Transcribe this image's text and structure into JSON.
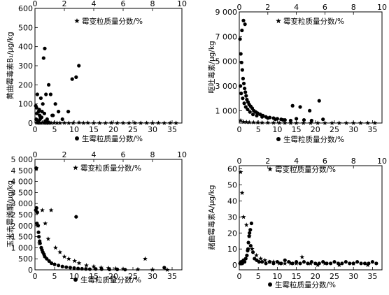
{
  "chart_data": [
    {
      "type": "scatter",
      "ylabel": "黄曲霉毒素B₁/μg/kg",
      "x_bottom": {
        "ticks": [
          "0",
          "5",
          "10",
          "15",
          "20",
          "25",
          "30",
          "35"
        ],
        "range": [
          0,
          37.5
        ]
      },
      "x_top": {
        "ticks": [
          "0",
          "2",
          "4",
          "6",
          "8",
          "10"
        ],
        "range": [
          0,
          10
        ]
      },
      "y": {
        "ticks": [
          "0",
          "100",
          "200",
          "300",
          "400",
          "500",
          "600"
        ],
        "range": [
          0,
          600
        ]
      },
      "series": [
        {
          "name": "生霉粒质量分数/%",
          "marker": "circle",
          "x": [
            0.2,
            0.4,
            0.6,
            0.9,
            1.2,
            1.5,
            1.8,
            2.2,
            2.5,
            2.8,
            3.1,
            3.5,
            4.0,
            4.6,
            5.2,
            6.0,
            7.0,
            8.5,
            9.5,
            10.5,
            11.2,
            0.3,
            0.8,
            1.4,
            2.0,
            3.0,
            4.4,
            0.5,
            1.1,
            1.7,
            2.4,
            0.7,
            1.3,
            2.6,
            3.3
          ],
          "y": [
            90,
            80,
            150,
            60,
            40,
            130,
            60,
            340,
            390,
            150,
            20,
            200,
            150,
            40,
            100,
            60,
            20,
            60,
            230,
            240,
            300,
            20,
            10,
            30,
            100,
            10,
            40,
            50,
            70,
            30,
            50,
            10,
            20,
            10,
            5
          ]
        },
        {
          "name": "霉变粒质量分数/%",
          "marker": "star",
          "x": [
            0.1,
            0.2,
            0.3,
            0.4,
            0.5,
            0.6,
            0.7,
            0.8,
            0.9,
            1.0,
            1.1,
            1.3,
            1.5,
            1.7,
            2.0,
            2.3,
            2.6,
            3.0,
            3.3,
            3.6,
            4.0,
            4.4,
            4.8,
            5.2,
            5.6,
            6.0,
            6.4,
            6.8,
            7.2,
            7.6,
            8.0,
            8.4,
            8.8,
            9.2,
            9.6
          ],
          "y": [
            2,
            0,
            1,
            0,
            3,
            0,
            1,
            0,
            0,
            2,
            0,
            1,
            0,
            0,
            1,
            0,
            0,
            2,
            0,
            1,
            0,
            0,
            0,
            1,
            0,
            0,
            0,
            0,
            0,
            0,
            0,
            0,
            0,
            0,
            0
          ]
        }
      ]
    },
    {
      "type": "scatter",
      "ylabel": "呕吐毒素/μg/kg",
      "x_bottom": {
        "ticks": [
          "0",
          "5",
          "10",
          "15",
          "20",
          "25",
          "30",
          "35"
        ],
        "range": [
          0,
          37.5
        ]
      },
      "x_top": {
        "ticks": [
          "0",
          "2",
          "4",
          "6",
          "8",
          "10"
        ],
        "range": [
          0,
          10
        ]
      },
      "y": {
        "ticks": [
          "1 000",
          "3 000",
          "5 000",
          "7 000",
          "9 000"
        ],
        "range": [
          0,
          9000
        ]
      },
      "series": [
        {
          "name": "生霉粒质量分数/%",
          "marker": "circle",
          "x": [
            0.2,
            0.4,
            0.6,
            0.8,
            1.0,
            1.2,
            1.4,
            1.6,
            1.8,
            2.0,
            2.3,
            2.6,
            3.0,
            3.4,
            3.8,
            4.3,
            4.8,
            5.5,
            6.2,
            7.0,
            8.0,
            9.0,
            10.0,
            11.0,
            12.0,
            13.5,
            15.0,
            17.0,
            19.0,
            21.0,
            22.0,
            0.3,
            0.5,
            0.9,
            1.3,
            1.7,
            2.2,
            2.8,
            3.6,
            4.6,
            6.0,
            7.5,
            9.5,
            11.5,
            14.0,
            16.0,
            18.5,
            0.7,
            1.1,
            1.5
          ],
          "y": [
            6800,
            5600,
            4900,
            4300,
            3600,
            3200,
            2800,
            2500,
            2200,
            1900,
            1700,
            1500,
            1350,
            1200,
            1000,
            900,
            800,
            700,
            600,
            500,
            450,
            400,
            350,
            300,
            250,
            200,
            350,
            250,
            200,
            1800,
            300,
            3000,
            2400,
            2000,
            1600,
            1300,
            1100,
            900,
            700,
            600,
            500,
            400,
            300,
            250,
            1400,
            1300,
            1000,
            7500,
            8300,
            8000
          ]
        },
        {
          "name": "霉变粒质量分数/%",
          "marker": "star",
          "x": [
            0.1,
            0.3,
            0.5,
            0.7,
            1.0,
            1.3,
            1.6,
            2.0,
            2.4,
            2.8,
            3.2,
            3.6,
            4.0,
            4.5,
            5.0,
            5.5,
            6.0,
            6.5,
            7.0,
            7.5,
            8.0,
            8.5,
            9.0,
            9.5
          ],
          "y": [
            200,
            100,
            80,
            60,
            50,
            40,
            30,
            20,
            20,
            10,
            10,
            0,
            0,
            0,
            0,
            0,
            0,
            0,
            0,
            0,
            0,
            0,
            0,
            0
          ]
        }
      ]
    },
    {
      "type": "scatter",
      "ylabel": "玉米赤霉烯酮/μg/kg",
      "x_bottom": {
        "ticks": [
          "0",
          "5",
          "10",
          "15",
          "20",
          "25",
          "30",
          "35"
        ],
        "range": [
          0,
          37.5
        ]
      },
      "x_top": {
        "ticks": [
          "0",
          "2",
          "4",
          "6",
          "8",
          "10"
        ],
        "range": [
          0,
          10
        ]
      },
      "y": {
        "ticks": [
          "0",
          "500",
          "1 000",
          "1 500",
          "2 000",
          "2 500",
          "3 000",
          "3 500",
          "4 000",
          "4 500",
          "5 000"
        ],
        "range": [
          0,
          5000
        ]
      },
      "series": [
        {
          "name": "生霉粒质量分数/%",
          "marker": "circle",
          "x": [
            0.2,
            0.4,
            0.6,
            0.8,
            1.0,
            1.3,
            1.6,
            2.0,
            2.5,
            3.0,
            3.6,
            4.2,
            5.0,
            6.0,
            7.0,
            8.0,
            9.0,
            10.0,
            10.5,
            11.0,
            12.0,
            13.0,
            14.0,
            15.5,
            17.0,
            19.0,
            21.0,
            23.0,
            33.0,
            0.3,
            0.5,
            0.9,
            1.2,
            1.8,
            2.3
          ],
          "y": [
            2700,
            2800,
            2600,
            2000,
            1500,
            1200,
            1000,
            800,
            600,
            500,
            400,
            300,
            250,
            200,
            150,
            120,
            100,
            80,
            2400,
            60,
            50,
            40,
            30,
            40,
            30,
            20,
            20,
            10,
            100,
            4600,
            2100,
            1700,
            1300,
            900,
            700
          ]
        },
        {
          "name": "霉变粒质量分数/%",
          "marker": "star",
          "x": [
            0.1,
            0.2,
            0.3,
            0.5,
            0.7,
            0.9,
            1.1,
            1.4,
            1.7,
            2.0,
            2.3,
            2.7,
            3.0,
            3.5,
            4.0,
            4.5,
            5.0,
            5.5,
            6.0,
            7.0,
            7.5,
            8.0,
            9.0
          ],
          "y": [
            4600,
            2000,
            1200,
            2700,
            2100,
            1400,
            2700,
            1000,
            800,
            600,
            500,
            400,
            300,
            200,
            150,
            100,
            80,
            60,
            40,
            20,
            500,
            10,
            0
          ]
        }
      ]
    },
    {
      "type": "scatter",
      "ylabel": "赭曲霉毒素A/μg/kg",
      "x_bottom": {
        "ticks": [
          "0",
          "5",
          "10",
          "15",
          "20",
          "25",
          "30",
          "35"
        ],
        "range": [
          0,
          37.5
        ]
      },
      "x_top": {
        "ticks": [
          "0",
          "2",
          "4",
          "6",
          "8",
          "10"
        ],
        "range": [
          0,
          10
        ]
      },
      "y": {
        "ticks": [
          "0",
          "10",
          "20",
          "30",
          "40",
          "50",
          "60"
        ],
        "range": [
          -3,
          62
        ]
      },
      "series": [
        {
          "name": "生霉粒质量分数/%",
          "marker": "circle",
          "x": [
            0.2,
            0.5,
            0.8,
            1.1,
            1.4,
            1.7,
            2.0,
            2.3,
            2.6,
            2.9,
            3.2,
            3.6,
            4.0,
            4.6,
            5.2,
            6.0,
            7.0,
            8.0,
            9.0,
            10.0,
            11.0,
            12.0,
            13.0,
            14.0,
            15.0,
            16.0,
            17.0,
            18.0,
            19.0,
            20.0,
            21.0,
            22.0,
            23.0,
            24.0,
            25.0,
            26.0,
            27.0,
            28.0,
            29.0,
            30.0,
            31.0,
            32.0,
            33.0,
            34.0,
            35.0,
            36.0,
            2.4,
            2.7,
            3.0,
            2.2
          ],
          "y": [
            1,
            2,
            1,
            3,
            2,
            4,
            6,
            10,
            18,
            22,
            26,
            8,
            4,
            3,
            2,
            2,
            1,
            2,
            1,
            2,
            1,
            3,
            2,
            1,
            2,
            1,
            2,
            1,
            2,
            1,
            1,
            2,
            1,
            1,
            2,
            1,
            1,
            2,
            1,
            1,
            2,
            1,
            1,
            1,
            2,
            1,
            14,
            20,
            12,
            9
          ]
        },
        {
          "name": "霉变粒质量分数/%",
          "marker": "star",
          "x": [
            0.1,
            0.2,
            0.3,
            0.5,
            0.7,
            0.9,
            1.2,
            1.5,
            1.8,
            2.1,
            2.4,
            2.8,
            3.2,
            3.6,
            4.0,
            4.4,
            5.0,
            5.5,
            6.0,
            7.0,
            8.0,
            9.0
          ],
          "y": [
            58,
            45,
            30,
            25,
            18,
            10,
            6,
            4,
            3,
            2,
            2,
            1,
            1,
            1,
            1,
            5,
            1,
            0,
            1,
            0,
            1,
            0
          ]
        }
      ]
    }
  ]
}
